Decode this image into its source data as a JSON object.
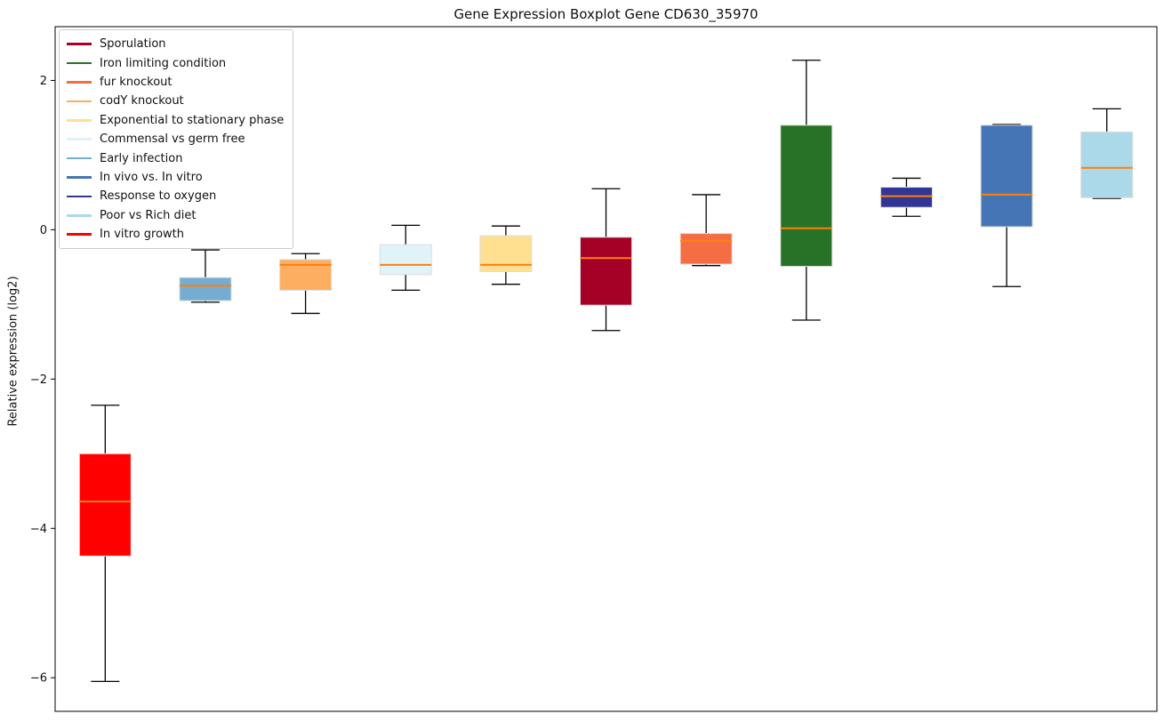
{
  "chart_data": {
    "type": "boxplot",
    "title": "Gene Expression Boxplot Gene CD630_35970",
    "ylabel": "Relative expression (log2)",
    "xlabel": "",
    "ylim": [
      -6.45,
      2.72
    ],
    "grid": false,
    "legend_position": "upper-left",
    "background": "#ffffff",
    "median_color": "#ff7f0e",
    "whisker_color": "#000000",
    "box_edge_color": "#dcdcdc",
    "yticks": [
      {
        "value": 2,
        "label": "2"
      },
      {
        "value": 0,
        "label": "0"
      },
      {
        "value": -2,
        "label": "−2"
      },
      {
        "value": -4,
        "label": "−4"
      },
      {
        "value": -6,
        "label": "−6"
      }
    ],
    "boxes": [
      {
        "position": 1,
        "name": "In vitro growth",
        "color": "#ff0000",
        "whisker_low": -6.05,
        "q1": -4.37,
        "median": -3.64,
        "q3": -3.0,
        "whisker_high": -2.35
      },
      {
        "position": 2,
        "name": "Early infection",
        "color": "#74add1",
        "whisker_low": -0.97,
        "q1": -0.95,
        "median": -0.75,
        "q3": -0.64,
        "whisker_high": -0.27
      },
      {
        "position": 3,
        "name": "codY knockout",
        "color": "#fdae61",
        "whisker_low": -1.12,
        "q1": -0.81,
        "median": -0.47,
        "q3": -0.4,
        "whisker_high": -0.32
      },
      {
        "position": 4,
        "name": "Commensal vs germ free",
        "color": "#e0f3f8",
        "whisker_low": -0.81,
        "q1": -0.6,
        "median": -0.47,
        "q3": -0.2,
        "whisker_high": 0.06
      },
      {
        "position": 5,
        "name": "Exponential to stationary phase",
        "color": "#fee090",
        "whisker_low": -0.73,
        "q1": -0.56,
        "median": -0.47,
        "q3": -0.08,
        "whisker_high": 0.05
      },
      {
        "position": 6,
        "name": "Sporulation",
        "color": "#a50026",
        "whisker_low": -1.35,
        "q1": -1.01,
        "median": -0.38,
        "q3": -0.1,
        "whisker_high": 0.55
      },
      {
        "position": 7,
        "name": "fur knockout",
        "color": "#f46d43",
        "whisker_low": -0.48,
        "q1": -0.46,
        "median": -0.15,
        "q3": -0.05,
        "whisker_high": 0.47
      },
      {
        "position": 8,
        "name": "Iron limiting condition",
        "color": "#277227",
        "whisker_low": -1.21,
        "q1": -0.49,
        "median": 0.02,
        "q3": 1.4,
        "whisker_high": 2.27
      },
      {
        "position": 9,
        "name": "Response to oxygen",
        "color": "#313695",
        "whisker_low": 0.18,
        "q1": 0.3,
        "median": 0.45,
        "q3": 0.57,
        "whisker_high": 0.69
      },
      {
        "position": 10,
        "name": "In vivo vs. In vitro",
        "color": "#4575b4",
        "whisker_low": -0.76,
        "q1": 0.04,
        "median": 0.47,
        "q3": 1.4,
        "whisker_high": 1.41
      },
      {
        "position": 11,
        "name": "Poor vs Rich diet",
        "color": "#abd9e9",
        "whisker_low": 0.42,
        "q1": 0.43,
        "median": 0.83,
        "q3": 1.31,
        "whisker_high": 1.62
      }
    ],
    "legend": [
      {
        "label": "Sporulation",
        "color": "#a50026"
      },
      {
        "label": "Iron limiting condition",
        "color": "#277227"
      },
      {
        "label": "fur knockout",
        "color": "#f46d43"
      },
      {
        "label": "codY knockout",
        "color": "#fdae61"
      },
      {
        "label": "Exponential to stationary phase",
        "color": "#fee090"
      },
      {
        "label": "Commensal vs germ free",
        "color": "#e0f3f8"
      },
      {
        "label": "Early infection",
        "color": "#74add1"
      },
      {
        "label": "In vivo vs. In vitro",
        "color": "#4575b4"
      },
      {
        "label": "Response to oxygen",
        "color": "#313695"
      },
      {
        "label": "Poor vs Rich diet",
        "color": "#abd9e9"
      },
      {
        "label": "In vitro growth",
        "color": "#ff0000"
      }
    ]
  }
}
